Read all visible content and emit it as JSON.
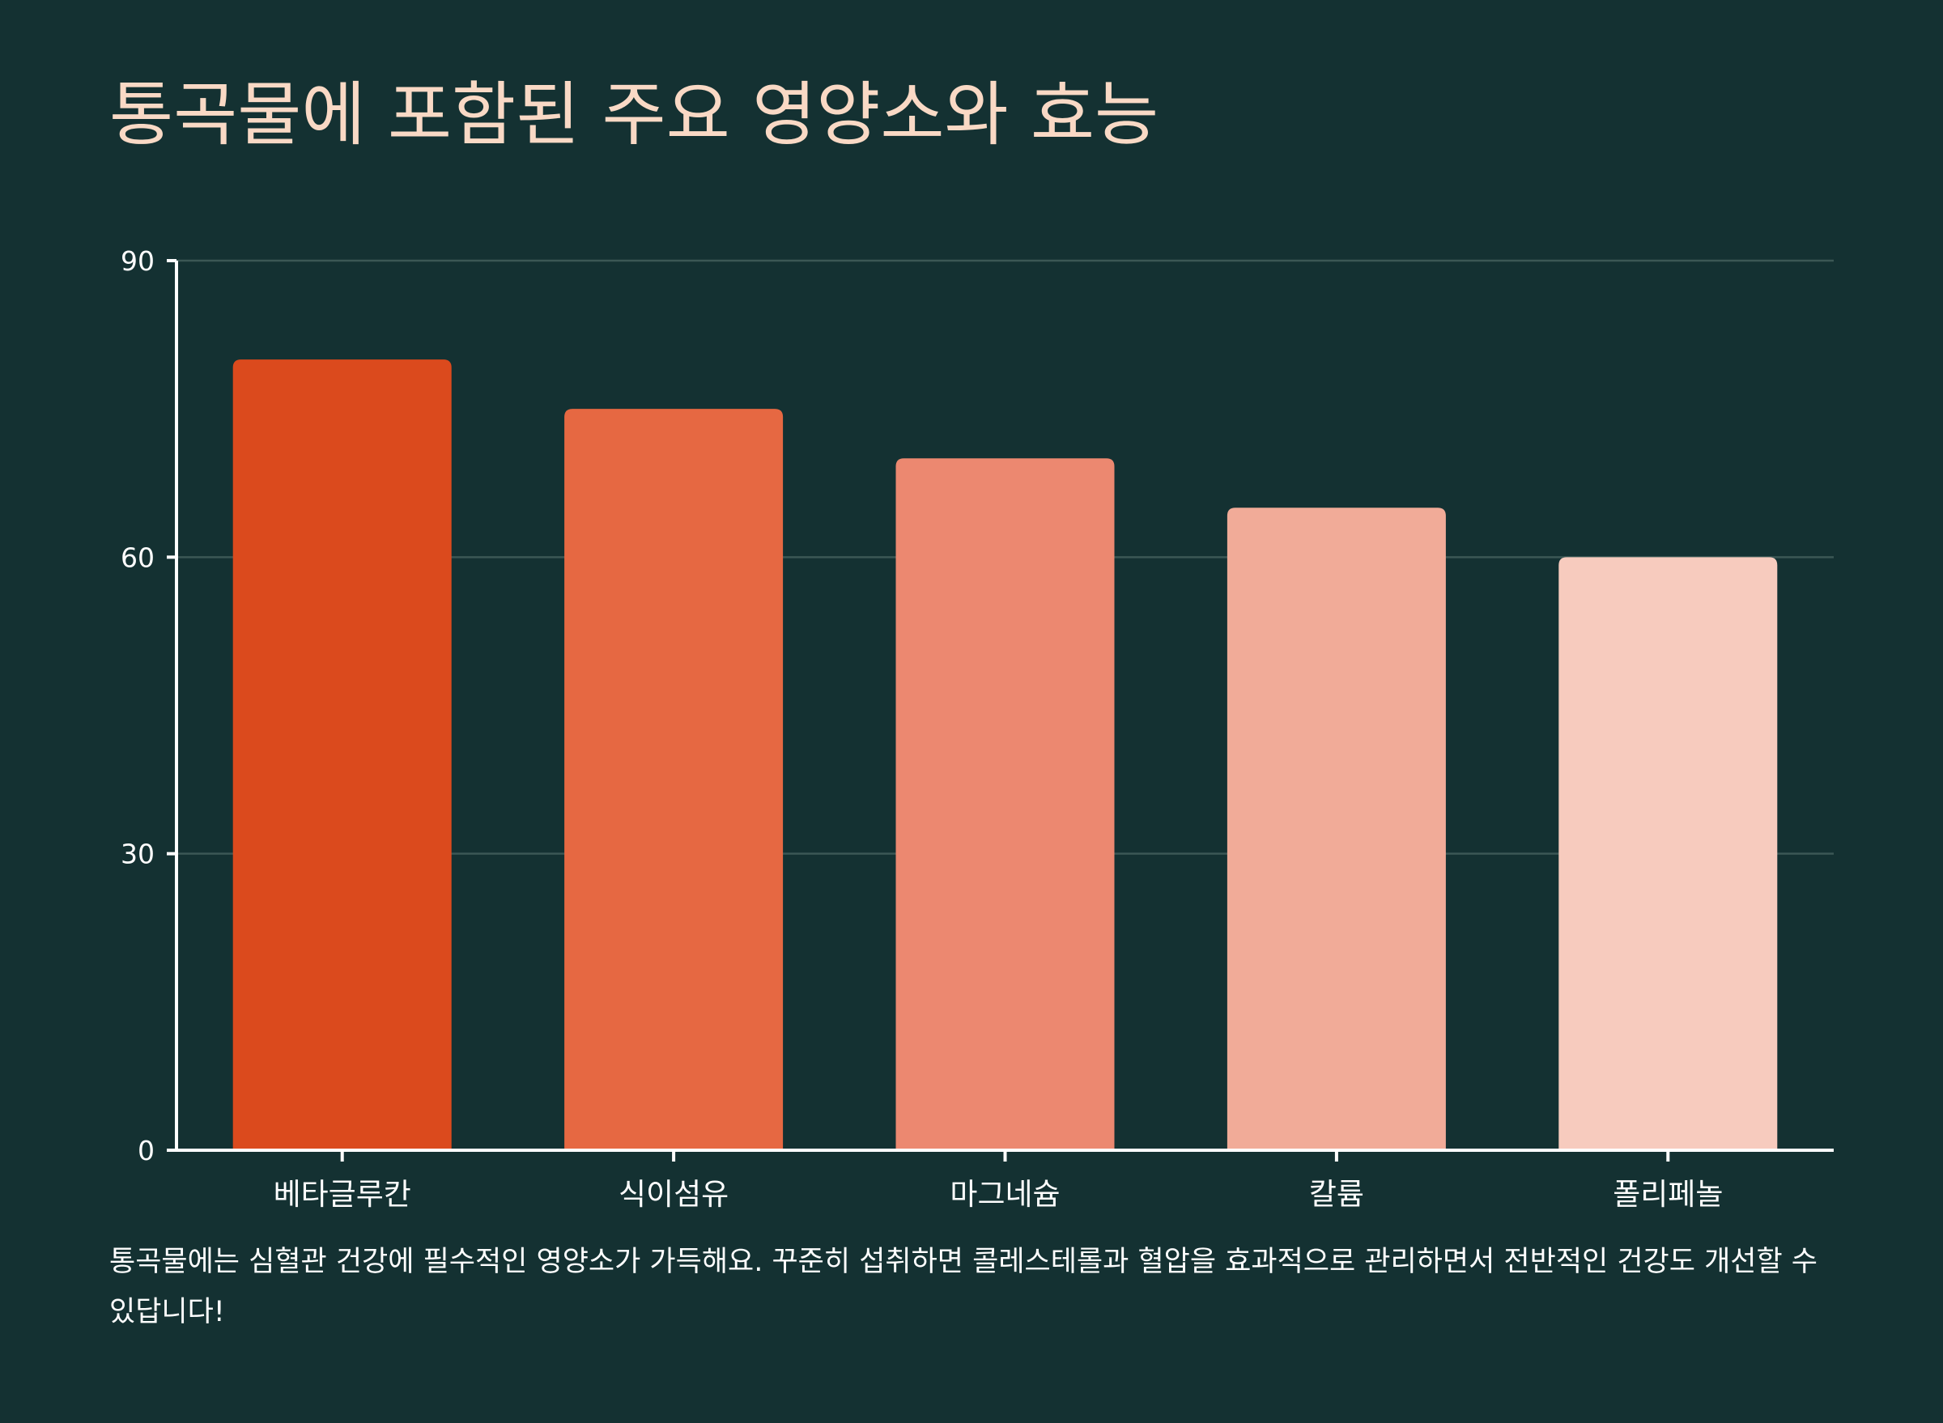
{
  "title": "통곡물에 포함된 주요 영양소와 효능",
  "caption": "통곡물에는 심혈관 건강에 필수적인 영양소가 가득해요. 꾸준히 섭취하면 콜레스테롤과 혈압을 효과적으로 관리하면서 전반적인 건강도 개선할 수 있답니다!",
  "colors": {
    "background": "#143132",
    "title": "#f9d9c5",
    "axis": "#ffffff",
    "grid": "#3b5755",
    "bars": [
      "#db4a1d",
      "#e66842",
      "#ec8870",
      "#f1ab98",
      "#f7cbbe"
    ]
  },
  "chart_data": {
    "type": "bar",
    "title": "통곡물에 포함된 주요 영양소와 효능",
    "xlabel": "",
    "ylabel": "",
    "categories": [
      "베타글루칸",
      "식이섬유",
      "마그네슘",
      "칼륨",
      "폴리페놀"
    ],
    "values": [
      80,
      75,
      70,
      65,
      60
    ],
    "ylim": [
      0,
      90
    ],
    "yticks": [
      0,
      30,
      60,
      90
    ],
    "grid": true,
    "legend": "none"
  }
}
